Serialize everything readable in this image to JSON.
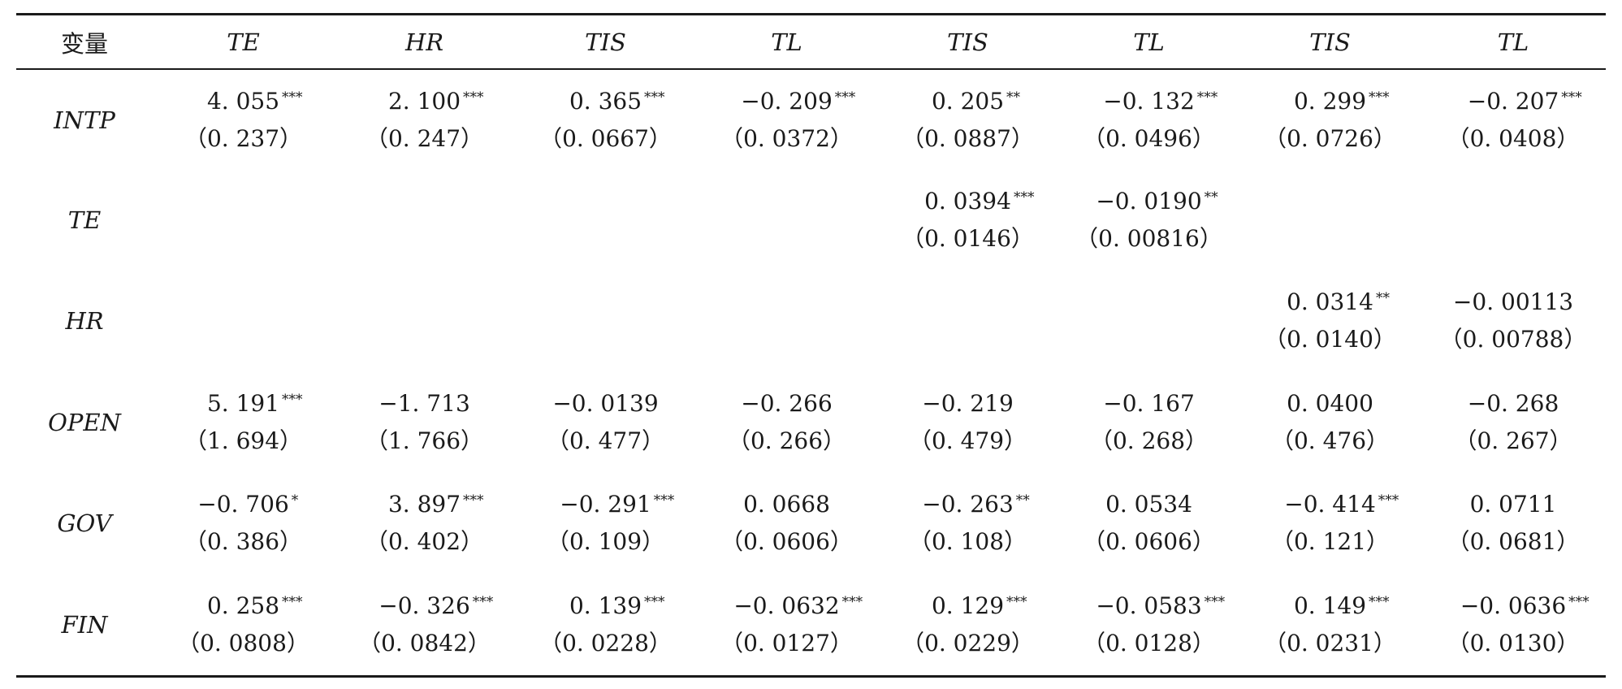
{
  "table": {
    "header_var": "变量",
    "columns": [
      "TE",
      "HR",
      "TIS",
      "TL",
      "TIS",
      "TL",
      "TIS",
      "TL"
    ],
    "rows": [
      {
        "var": "INTP",
        "cells": [
          {
            "coef": "4. 055",
            "stars": "***",
            "se": "（0. 237）"
          },
          {
            "coef": "2. 100",
            "stars": "***",
            "se": "（0. 247）"
          },
          {
            "coef": "0. 365",
            "stars": "***",
            "se": "（0. 0667）"
          },
          {
            "coef": "−0. 209",
            "stars": "***",
            "se": "（0. 0372）"
          },
          {
            "coef": "0. 205",
            "stars": "**",
            "se": "（0. 0887）"
          },
          {
            "coef": "−0. 132",
            "stars": "***",
            "se": "（0. 0496）"
          },
          {
            "coef": "0. 299",
            "stars": "***",
            "se": "（0. 0726）"
          },
          {
            "coef": "−0. 207",
            "stars": "***",
            "se": "（0. 0408）"
          }
        ]
      },
      {
        "var": "TE",
        "cells": [
          {
            "coef": "",
            "stars": "",
            "se": ""
          },
          {
            "coef": "",
            "stars": "",
            "se": ""
          },
          {
            "coef": "",
            "stars": "",
            "se": ""
          },
          {
            "coef": "",
            "stars": "",
            "se": ""
          },
          {
            "coef": "0. 0394",
            "stars": "***",
            "se": "（0. 0146）"
          },
          {
            "coef": "−0. 0190",
            "stars": "**",
            "se": "（0. 00816）"
          },
          {
            "coef": "",
            "stars": "",
            "se": ""
          },
          {
            "coef": "",
            "stars": "",
            "se": ""
          }
        ]
      },
      {
        "var": "HR",
        "cells": [
          {
            "coef": "",
            "stars": "",
            "se": ""
          },
          {
            "coef": "",
            "stars": "",
            "se": ""
          },
          {
            "coef": "",
            "stars": "",
            "se": ""
          },
          {
            "coef": "",
            "stars": "",
            "se": ""
          },
          {
            "coef": "",
            "stars": "",
            "se": ""
          },
          {
            "coef": "",
            "stars": "",
            "se": ""
          },
          {
            "coef": "0. 0314",
            "stars": "**",
            "se": "（0. 0140）"
          },
          {
            "coef": "−0. 00113",
            "stars": "",
            "se": "（0. 00788）"
          }
        ]
      },
      {
        "var": "OPEN",
        "cells": [
          {
            "coef": "5. 191",
            "stars": "***",
            "se": "（1. 694）"
          },
          {
            "coef": "−1. 713",
            "stars": "",
            "se": "（1. 766）"
          },
          {
            "coef": "−0. 0139",
            "stars": "",
            "se": "（0. 477）"
          },
          {
            "coef": "−0. 266",
            "stars": "",
            "se": "（0. 266）"
          },
          {
            "coef": "−0. 219",
            "stars": "",
            "se": "（0. 479）"
          },
          {
            "coef": "−0. 167",
            "stars": "",
            "se": "（0. 268）"
          },
          {
            "coef": "0. 0400",
            "stars": "",
            "se": "（0. 476）"
          },
          {
            "coef": "−0. 268",
            "stars": "",
            "se": "（0. 267）"
          }
        ]
      },
      {
        "var": "GOV",
        "cells": [
          {
            "coef": "−0. 706",
            "stars": "*",
            "se": "（0. 386）"
          },
          {
            "coef": "3. 897",
            "stars": "***",
            "se": "（0. 402）"
          },
          {
            "coef": "−0. 291",
            "stars": "***",
            "se": "（0. 109）"
          },
          {
            "coef": "0. 0668",
            "stars": "",
            "se": "（0. 0606）"
          },
          {
            "coef": "−0. 263",
            "stars": "**",
            "se": "（0. 108）"
          },
          {
            "coef": "0. 0534",
            "stars": "",
            "se": "（0. 0606）"
          },
          {
            "coef": "−0. 414",
            "stars": "***",
            "se": "（0. 121）"
          },
          {
            "coef": "0. 0711",
            "stars": "",
            "se": "（0. 0681）"
          }
        ]
      },
      {
        "var": "FIN",
        "cells": [
          {
            "coef": "0. 258",
            "stars": "***",
            "se": "（0. 0808）"
          },
          {
            "coef": "−0. 326",
            "stars": "***",
            "se": "（0. 0842）"
          },
          {
            "coef": "0. 139",
            "stars": "***",
            "se": "（0. 0228）"
          },
          {
            "coef": "−0. 0632",
            "stars": "***",
            "se": "（0. 0127）"
          },
          {
            "coef": "0. 129",
            "stars": "***",
            "se": "（0. 0229）"
          },
          {
            "coef": "−0. 0583",
            "stars": "***",
            "se": "（0. 0128）"
          },
          {
            "coef": "0. 149",
            "stars": "***",
            "se": "（0. 0231）"
          },
          {
            "coef": "−0. 0636",
            "stars": "***",
            "se": "（0. 0130）"
          }
        ]
      }
    ]
  }
}
